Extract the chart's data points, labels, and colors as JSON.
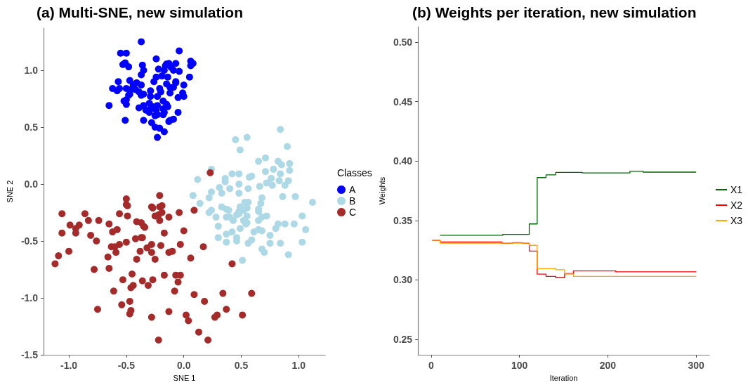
{
  "chart_data": [
    {
      "type": "scatter",
      "title": "(a) Multi-SNE, new simulation",
      "xlabel": "SNE 1",
      "ylabel": "SNE 2",
      "legend_title": "Classes",
      "legend": "right",
      "marker": "circle",
      "xlim": [
        -1.22,
        1.23
      ],
      "ylim": [
        -1.5,
        1.37
      ],
      "xticks": [
        {
          "value": -1,
          "label": "-1.0"
        },
        {
          "value": -0.5,
          "label": "-0.5"
        },
        {
          "value": 0,
          "label": "0.0"
        },
        {
          "value": 0.5,
          "label": "0.5"
        },
        {
          "value": 1,
          "label": "1.0"
        }
      ],
      "yticks": [
        {
          "value": -1.5,
          "label": "-1.5"
        },
        {
          "value": -1,
          "label": "-1.0"
        },
        {
          "value": -0.5,
          "label": "-0.5"
        },
        {
          "value": 0,
          "label": "0.0"
        },
        {
          "value": 0.5,
          "label": "0.5"
        },
        {
          "value": 1,
          "label": "1.0"
        }
      ],
      "series": [
        {
          "name": "A",
          "color": "#0000ff",
          "x": [
            -0.37,
            -0.55,
            -0.5,
            -0.04,
            -0.24,
            -0.53,
            -0.51,
            -0.48,
            -0.36,
            -0.35,
            -0.37,
            -0.22,
            -0.16,
            -0.13,
            -0.11,
            -0.07,
            -0.09,
            -0.04,
            0.06,
            0.08,
            0.06,
            0.05,
            -0.17,
            -0.24,
            -0.19,
            -0.14,
            -0.26,
            -0.57,
            -0.47,
            -0.41,
            -0.44,
            -0.62,
            -0.58,
            -0.56,
            -0.5,
            -0.46,
            -0.42,
            -0.39,
            -0.35,
            -0.37,
            -0.29,
            -0.21,
            -0.15,
            -0.12,
            -0.09,
            -0.07,
            0.0,
            -0.01,
            0.0,
            -0.12,
            -0.2,
            -0.47,
            -0.48,
            -0.65,
            -0.52,
            -0.5,
            -0.5,
            -0.39,
            -0.35,
            -0.3,
            -0.27,
            -0.23,
            -0.18,
            -0.15,
            -0.14,
            -0.05,
            -0.29,
            -0.23,
            -0.18,
            -0.17,
            -0.05,
            -0.23,
            -0.24,
            -0.33,
            -0.3,
            -0.25,
            -0.18,
            -0.51,
            -0.35,
            -0.28,
            -0.25,
            -0.21,
            -0.13,
            -0.12,
            -0.09,
            -0.17,
            -0.23,
            -0.15,
            -0.07,
            -0.37,
            -0.29
          ],
          "values": [
            1.25,
            1.15,
            1.15,
            1.17,
            1.1,
            1.05,
            1.065,
            1.03,
            1.045,
            1.0,
            0.96,
            1.01,
            1.04,
            1.06,
            1.025,
            1.06,
            1.0,
            0.99,
            1.08,
            1.06,
            1.04,
            0.94,
            1.0,
            0.94,
            0.95,
            0.94,
            0.9,
            0.9,
            0.91,
            0.89,
            0.87,
            0.84,
            0.82,
            0.84,
            0.84,
            0.83,
            0.83,
            0.81,
            0.79,
            0.78,
            0.82,
            0.84,
            0.88,
            0.85,
            0.85,
            0.89,
            0.87,
            0.8,
            0.77,
            0.8,
            0.81,
            0.79,
            0.78,
            0.69,
            0.73,
            0.74,
            0.7,
            0.67,
            0.69,
            0.71,
            0.68,
            0.69,
            0.73,
            0.7,
            0.68,
            0.76,
            0.77,
            0.77,
            0.66,
            0.63,
            0.63,
            0.61,
            0.65,
            0.65,
            0.63,
            0.6,
            0.61,
            0.56,
            0.56,
            0.54,
            0.5,
            0.49,
            0.55,
            0.56,
            0.57,
            0.46,
            0.41,
            1.055,
            0.9,
            0.87,
            0.66
          ]
        },
        {
          "name": "B",
          "color": "#add8e6",
          "x": [
            0.84,
            0.45,
            0.55,
            0.49,
            0.9,
            0.65,
            0.71,
            0.82,
            0.85,
            0.92,
            0.92,
            0.78,
            0.71,
            0.84,
            0.91,
            0.83,
            0.88,
            0.76,
            0.72,
            0.77,
            0.66,
            0.56,
            0.48,
            0.48,
            0.42,
            0.36,
            0.36,
            0.57,
            0.59,
            0.31,
            0.4,
            0.33,
            0.24,
            0.22,
            0.08,
            0.12,
            0.24,
            0.14,
            0.48,
            0.68,
            0.67,
            0.86,
            0.97,
            1.12,
            0.33,
            0.37,
            0.39,
            0.49,
            0.53,
            0.56,
            0.55,
            0.48,
            0.52,
            0.65,
            0.65,
            0.24,
            0.22,
            0.28,
            0.37,
            0.4,
            0.43,
            0.46,
            0.48,
            0.55,
            0.55,
            0.52,
            0.54,
            0.65,
            0.68,
            0.72,
            0.3,
            0.42,
            0.49,
            0.37,
            0.3,
            0.37,
            0.46,
            0.46,
            0.56,
            0.59,
            0.61,
            0.65,
            0.68,
            0.75,
            0.75,
            0.84,
            0.8,
            0.82,
            0.88,
            0.96,
            1.03,
            1.06,
            1.03,
            0.68,
            0.7,
            0.91,
            0.51
          ],
          "values": [
            0.48,
            0.39,
            0.41,
            0.3,
            0.33,
            0.2,
            0.23,
            0.2,
            0.17,
            0.18,
            0.12,
            0.13,
            0.11,
            0.09,
            0.03,
            0.03,
            -0.01,
            0.05,
            0.01,
            -0.01,
            -0.02,
            -0.04,
            0.0,
            0.09,
            0.09,
            0.05,
            0.02,
            0.06,
            0.07,
            -0.03,
            -0.04,
            -0.08,
            -0.07,
            -0.12,
            -0.1,
            0.04,
            0.13,
            -0.17,
            -0.08,
            -0.12,
            -0.17,
            -0.11,
            -0.11,
            -0.16,
            -0.2,
            -0.22,
            -0.23,
            -0.2,
            -0.16,
            -0.16,
            -0.21,
            -0.24,
            -0.23,
            -0.22,
            -0.24,
            -0.23,
            -0.25,
            -0.29,
            -0.29,
            -0.29,
            -0.32,
            -0.27,
            -0.26,
            -0.28,
            -0.34,
            -0.32,
            -0.35,
            -0.32,
            -0.29,
            -0.28,
            -0.37,
            -0.42,
            -0.39,
            -0.44,
            -0.47,
            -0.51,
            -0.47,
            -0.5,
            -0.52,
            -0.49,
            -0.42,
            -0.4,
            -0.41,
            -0.45,
            -0.52,
            -0.52,
            -0.39,
            -0.35,
            -0.35,
            -0.35,
            -0.28,
            -0.4,
            -0.51,
            -0.57,
            -0.6,
            -0.62,
            -0.67
          ]
        },
        {
          "name": "C",
          "color": "#a52a2a",
          "x": [
            0.23,
            -1.12,
            -1.09,
            -1.06,
            -1.06,
            -0.99,
            -1.0,
            -0.94,
            -0.94,
            -0.91,
            -0.86,
            -0.83,
            -0.81,
            -0.76,
            -0.74,
            -0.78,
            -0.75,
            -0.66,
            -0.65,
            -0.62,
            -0.65,
            -0.61,
            -0.59,
            -0.63,
            -0.6,
            -0.58,
            -0.56,
            -0.56,
            -0.54,
            -0.53,
            -0.5,
            -0.5,
            -0.49,
            -0.49,
            -0.5,
            -0.47,
            -0.46,
            -0.47,
            -0.46,
            -0.45,
            -0.44,
            -0.41,
            -0.41,
            -0.42,
            -0.37,
            -0.38,
            -0.35,
            -0.34,
            -0.37,
            -0.36,
            -0.32,
            -0.36,
            -0.31,
            -0.28,
            -0.27,
            -0.28,
            -0.28,
            -0.25,
            -0.28,
            -0.27,
            -0.25,
            -0.22,
            -0.21,
            -0.21,
            -0.19,
            -0.19,
            -0.21,
            -0.2,
            -0.17,
            -0.17,
            -0.13,
            -0.13,
            -0.1,
            -0.13,
            -0.08,
            -0.05,
            -0.07,
            -0.03,
            -0.04,
            -0.03,
            0.0,
            0.02,
            0.04,
            0.06,
            0.09,
            0.09,
            0.13,
            0.17,
            0.18,
            0.21,
            -0.22,
            0.27,
            0.29,
            0.34,
            0.37,
            0.42,
            0.51,
            0.59
          ],
          "values": [
            0.1,
            -0.7,
            -0.63,
            -0.26,
            -0.43,
            -0.36,
            -0.59,
            -0.43,
            -0.39,
            -0.36,
            -0.26,
            -0.32,
            -0.45,
            -0.5,
            -0.32,
            -0.75,
            -1.1,
            -0.64,
            -0.35,
            -0.42,
            -0.74,
            -0.94,
            -0.6,
            -0.55,
            -0.55,
            -0.4,
            -0.26,
            -0.53,
            -1.06,
            -0.84,
            -0.13,
            -0.18,
            -0.19,
            -0.28,
            -0.51,
            -1.03,
            -0.91,
            -1.14,
            -1.11,
            -0.79,
            -0.89,
            -0.66,
            -0.33,
            -0.48,
            -0.34,
            -0.59,
            -0.37,
            -0.38,
            -0.47,
            -0.47,
            -0.56,
            -0.85,
            -0.89,
            -0.2,
            -0.21,
            -0.53,
            -0.6,
            -0.66,
            -1.17,
            -0.84,
            -0.28,
            -0.27,
            -0.1,
            -0.2,
            -0.19,
            -0.25,
            -0.32,
            -0.54,
            -0.43,
            -0.8,
            -0.29,
            -0.6,
            -0.59,
            -1.12,
            -0.94,
            -0.86,
            -0.8,
            -0.8,
            -0.25,
            -0.53,
            -0.41,
            -1.15,
            -1.2,
            -0.65,
            -0.97,
            -0.23,
            -1.3,
            -0.55,
            -1.03,
            -1.37,
            -1.37,
            -1.17,
            -1.15,
            -0.96,
            -1.1,
            -0.7,
            -1.15,
            -0.96
          ]
        }
      ]
    },
    {
      "type": "step",
      "title": "(b) Weights per iteration, new simulation",
      "xlabel": "Iteration",
      "ylabel": "Weights",
      "legend": "right",
      "xlim": [
        -15,
        315
      ],
      "ylim": [
        0.237,
        0.513
      ],
      "xticks": [
        0,
        100,
        200,
        300
      ],
      "yticks": [
        {
          "value": 0.25,
          "label": "0.25"
        },
        {
          "value": 0.3,
          "label": "0.30"
        },
        {
          "value": 0.35,
          "label": "0.35"
        },
        {
          "value": 0.4,
          "label": "0.40"
        },
        {
          "value": 0.45,
          "label": "0.45"
        },
        {
          "value": 0.5,
          "label": "0.50"
        }
      ],
      "series": [
        {
          "name": "X1",
          "color": "#006400",
          "x": [
            10,
            81,
            111,
            120,
            130,
            141,
            171,
            225,
            240,
            300
          ],
          "values": [
            0.3376,
            0.3383,
            0.3471,
            0.3861,
            0.3884,
            0.3905,
            0.39,
            0.3913,
            0.3907,
            0.3907
          ]
        },
        {
          "name": "X2",
          "color": "#ff0000",
          "x": [
            1,
            10,
            80,
            92,
            103,
            111,
            120,
            130,
            141,
            151,
            161,
            209,
            300
          ],
          "values": [
            0.3333,
            0.332,
            0.3308,
            0.3314,
            0.3308,
            0.3243,
            0.3049,
            0.303,
            0.3019,
            0.3053,
            0.3076,
            0.3068,
            0.3068
          ]
        },
        {
          "name": "X3",
          "color": "#ffa500",
          "x": [
            1,
            10,
            111,
            120,
            141,
            151,
            161,
            300
          ],
          "values": [
            0.3335,
            0.331,
            0.3291,
            0.3095,
            0.3086,
            0.3051,
            0.303,
            0.303
          ]
        }
      ]
    }
  ]
}
